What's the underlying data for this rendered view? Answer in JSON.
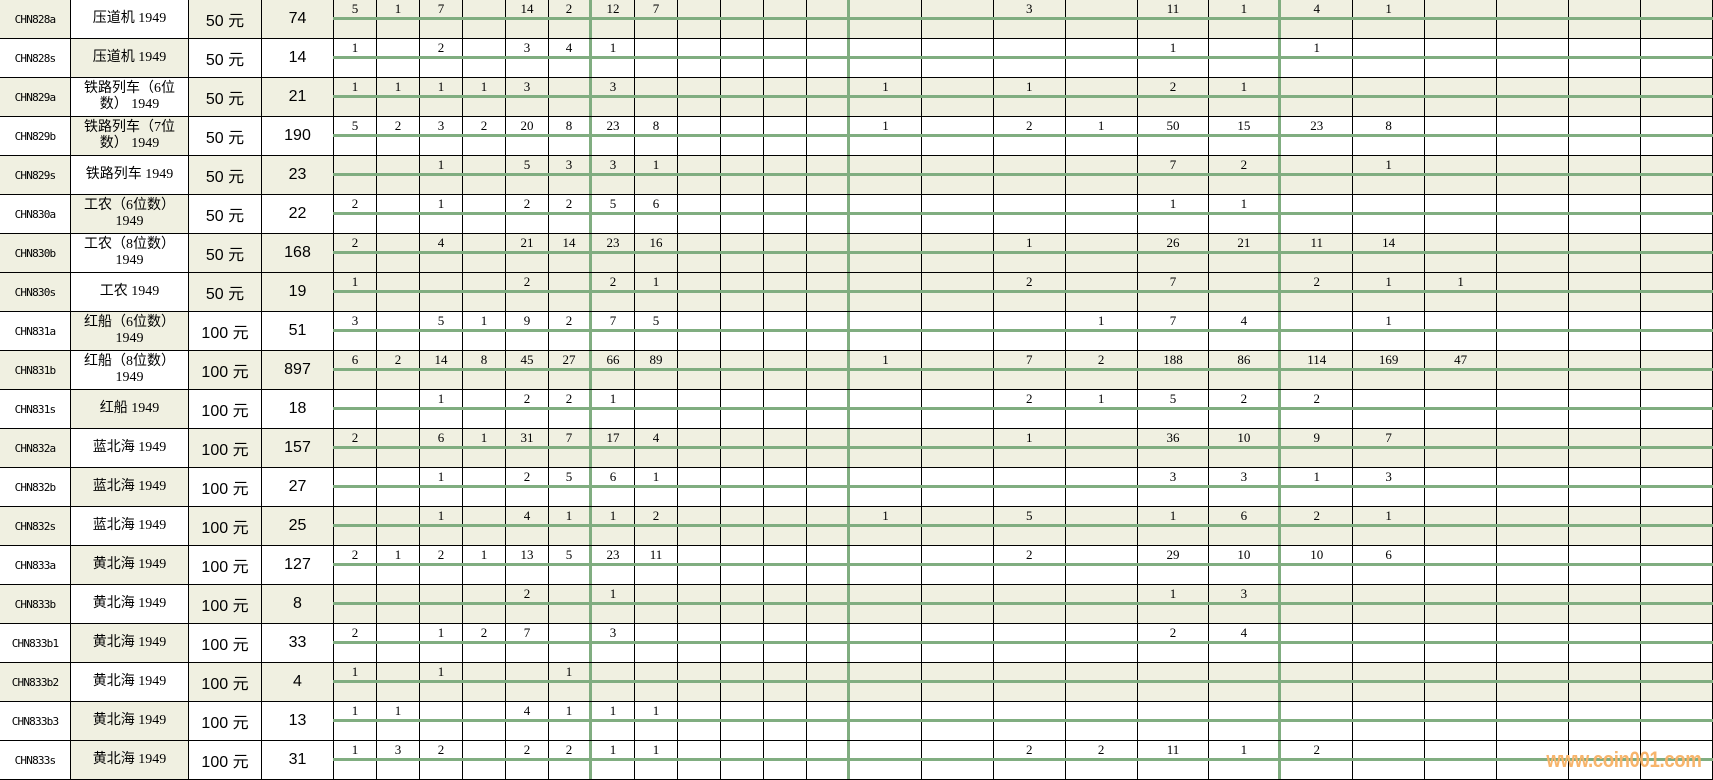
{
  "colors": {
    "shade": "#f0f0e1",
    "grid_green": "#80ad80",
    "watermark": "#f7b46b"
  },
  "watermark": "www.coin001.com",
  "rows": [
    {
      "code": "CHN828a",
      "name": "压道机 1949",
      "denom": "50 元",
      "total": "74",
      "shaded": true,
      "values": [
        "5",
        "1",
        "7",
        "",
        "14",
        "2",
        "12",
        "7",
        "",
        "",
        "",
        "",
        "",
        "",
        "3",
        "",
        "11",
        "1",
        "4",
        "1",
        "",
        "",
        "",
        ""
      ]
    },
    {
      "code": "CHN828s",
      "name": "压道机 1949",
      "denom": "50 元",
      "total": "14",
      "shaded": false,
      "values": [
        "1",
        "",
        "2",
        "",
        "3",
        "4",
        "1",
        "",
        "",
        "",
        "",
        "",
        "",
        "",
        "",
        "",
        "1",
        "",
        "1",
        "",
        "",
        "",
        "",
        ""
      ]
    },
    {
      "code": "CHN829a",
      "name": "铁路列车（6位数） 1949",
      "denom": "50 元",
      "total": "21",
      "shaded": true,
      "values": [
        "1",
        "1",
        "1",
        "1",
        "3",
        "",
        "3",
        "",
        "",
        "",
        "",
        "",
        "1",
        "",
        "1",
        "",
        "2",
        "1",
        "",
        "",
        "",
        "",
        "",
        ""
      ]
    },
    {
      "code": "CHN829b",
      "name": "铁路列车（7位数） 1949",
      "denom": "50 元",
      "total": "190",
      "shaded": false,
      "values": [
        "5",
        "2",
        "3",
        "2",
        "20",
        "8",
        "23",
        "8",
        "",
        "",
        "",
        "",
        "1",
        "",
        "2",
        "1",
        "50",
        "15",
        "23",
        "8",
        "",
        "",
        "",
        ""
      ]
    },
    {
      "code": "CHN829s",
      "name": "铁路列车 1949",
      "denom": "50 元",
      "total": "23",
      "shaded": true,
      "values": [
        "",
        "",
        "1",
        "",
        "5",
        "3",
        "3",
        "1",
        "",
        "",
        "",
        "",
        "",
        "",
        "",
        "",
        "7",
        "2",
        "",
        "1",
        "",
        "",
        "",
        ""
      ]
    },
    {
      "code": "CHN830a",
      "name": "工农（6位数） 1949",
      "denom": "50 元",
      "total": "22",
      "shaded": false,
      "values": [
        "2",
        "",
        "1",
        "",
        "2",
        "2",
        "5",
        "6",
        "",
        "",
        "",
        "",
        "",
        "",
        "",
        "",
        "1",
        "1",
        "",
        "",
        "",
        "",
        "",
        ""
      ]
    },
    {
      "code": "CHN830b",
      "name": "工农（8位数） 1949",
      "denom": "50 元",
      "total": "168",
      "shaded": true,
      "values": [
        "2",
        "",
        "4",
        "",
        "21",
        "14",
        "23",
        "16",
        "",
        "",
        "",
        "",
        "",
        "",
        "1",
        "",
        "26",
        "21",
        "11",
        "14",
        "",
        "",
        "",
        ""
      ]
    },
    {
      "code": "CHN830s",
      "name": "工农  1949",
      "denom": "50 元",
      "total": "19",
      "shaded": true,
      "values": [
        "1",
        "",
        "",
        "",
        "2",
        "",
        "2",
        "1",
        "",
        "",
        "",
        "",
        "",
        "",
        "2",
        "",
        "7",
        "",
        "2",
        "1",
        "1",
        "",
        "",
        ""
      ]
    },
    {
      "code": "CHN831a",
      "name": "红船（6位数） 1949",
      "denom": "100 元",
      "total": "51",
      "shaded": false,
      "values": [
        "3",
        "",
        "5",
        "1",
        "9",
        "2",
        "7",
        "5",
        "",
        "",
        "",
        "",
        "",
        "",
        "",
        "1",
        "7",
        "4",
        "",
        "1",
        "",
        "",
        "",
        ""
      ]
    },
    {
      "code": "CHN831b",
      "name": "红船（8位数） 1949",
      "denom": "100 元",
      "total": "897",
      "shaded": true,
      "values": [
        "6",
        "2",
        "14",
        "8",
        "45",
        "27",
        "66",
        "89",
        "",
        "",
        "",
        "",
        "1",
        "",
        "7",
        "2",
        "188",
        "86",
        "114",
        "169",
        "47",
        "",
        "",
        ""
      ]
    },
    {
      "code": "CHN831s",
      "name": "红船  1949",
      "denom": "100 元",
      "total": "18",
      "shaded": false,
      "values": [
        "",
        "",
        "1",
        "",
        "2",
        "2",
        "1",
        "",
        "",
        "",
        "",
        "",
        "",
        "",
        "2",
        "1",
        "5",
        "2",
        "2",
        "",
        "",
        "",
        "",
        ""
      ]
    },
    {
      "code": "CHN832a",
      "name": "蓝北海 1949",
      "denom": "100 元",
      "total": "157",
      "shaded": true,
      "values": [
        "2",
        "",
        "6",
        "1",
        "31",
        "7",
        "17",
        "4",
        "",
        "",
        "",
        "",
        "",
        "",
        "1",
        "",
        "36",
        "10",
        "9",
        "7",
        "",
        "",
        "",
        ""
      ]
    },
    {
      "code": "CHN832b",
      "name": "蓝北海 1949",
      "denom": "100 元",
      "total": "27",
      "shaded": false,
      "values": [
        "",
        "",
        "1",
        "",
        "2",
        "5",
        "6",
        "1",
        "",
        "",
        "",
        "",
        "",
        "",
        "",
        "",
        "3",
        "3",
        "1",
        "3",
        "",
        "",
        "",
        ""
      ]
    },
    {
      "code": "CHN832s",
      "name": "蓝北海 1949",
      "denom": "100 元",
      "total": "25",
      "shaded": true,
      "values": [
        "",
        "",
        "1",
        "",
        "4",
        "1",
        "1",
        "2",
        "",
        "",
        "",
        "",
        "1",
        "",
        "5",
        "",
        "1",
        "6",
        "2",
        "1",
        "",
        "",
        "",
        ""
      ]
    },
    {
      "code": "CHN833a",
      "name": "黄北海 1949",
      "denom": "100 元",
      "total": "127",
      "shaded": false,
      "values": [
        "2",
        "1",
        "2",
        "1",
        "13",
        "5",
        "23",
        "11",
        "",
        "",
        "",
        "",
        "",
        "",
        "2",
        "",
        "29",
        "10",
        "10",
        "6",
        "",
        "",
        "",
        ""
      ]
    },
    {
      "code": "CHN833b",
      "name": "黄北海 1949",
      "denom": "100 元",
      "total": "8",
      "shaded": true,
      "values": [
        "",
        "",
        "",
        "",
        "2",
        "",
        "1",
        "",
        "",
        "",
        "",
        "",
        "",
        "",
        "",
        "",
        "1",
        "3",
        "",
        "",
        "",
        "",
        "",
        ""
      ]
    },
    {
      "code": "CHN833b1",
      "name": "黄北海 1949",
      "denom": "100 元",
      "total": "33",
      "shaded": false,
      "values": [
        "2",
        "",
        "1",
        "2",
        "7",
        "",
        "3",
        "",
        "",
        "",
        "",
        "",
        "",
        "",
        "",
        "",
        "2",
        "4",
        "",
        "",
        "",
        "",
        "",
        ""
      ]
    },
    {
      "code": "CHN833b2",
      "name": "黄北海 1949",
      "denom": "100 元",
      "total": "4",
      "shaded": true,
      "values": [
        "1",
        "",
        "1",
        "",
        "",
        "1",
        "",
        "",
        "",
        "",
        "",
        "",
        "",
        "",
        "",
        "",
        "",
        "",
        "",
        "",
        "",
        "",
        "",
        ""
      ]
    },
    {
      "code": "CHN833b3",
      "name": "黄北海 1949",
      "denom": "100 元",
      "total": "13",
      "shaded": false,
      "values": [
        "1",
        "1",
        "",
        "",
        "4",
        "1",
        "1",
        "1",
        "",
        "",
        "",
        "",
        "",
        "",
        "",
        "",
        "",
        "",
        "",
        "",
        "",
        "",
        "",
        ""
      ]
    },
    {
      "code": "CHN833s",
      "name": "黄北海 1949",
      "denom": "100 元",
      "total": "31",
      "shaded": false,
      "values": [
        "1",
        "3",
        "2",
        "",
        "2",
        "2",
        "1",
        "1",
        "",
        "",
        "",
        "",
        "",
        "",
        "2",
        "2",
        "11",
        "1",
        "2",
        "",
        "",
        "",
        "",
        ""
      ]
    }
  ]
}
